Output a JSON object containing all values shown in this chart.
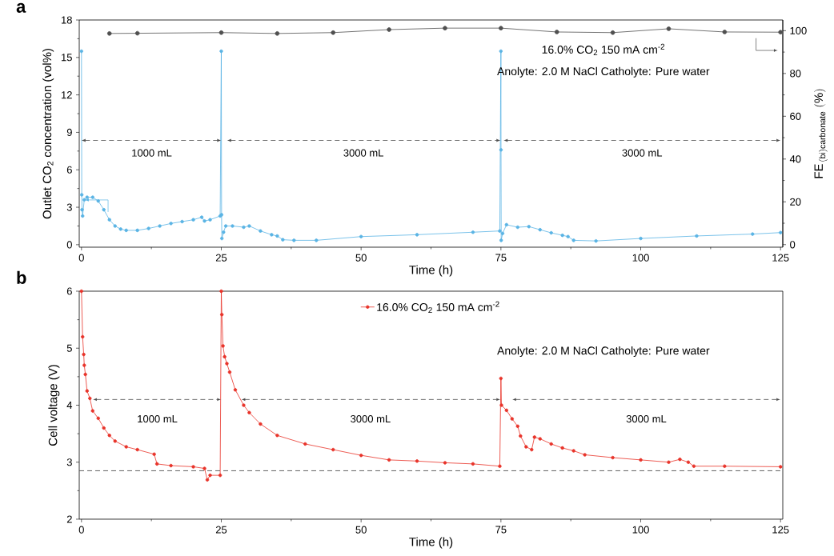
{
  "chart_data": [
    {
      "type": "line",
      "title": "a",
      "xlabel": "Time (h)",
      "ylabel": "Outlet CO$_{2}$ concentration (vol%)",
      "y2label": "\\mathrm{FE}_{\\,\\mathrm{(bi)carbonate}}\\ (\\%)",
      "annotations": [
        "16.0% CO$_{2}$   150 mA cm$^{-2}$",
        "Anolyte: 2.0 M NaCl  Catholyte:  Pure water",
        "1000 mL",
        "3000 mL",
        "3000 mL"
      ],
      "marker": "circle",
      "line_style": "solid",
      "xlim": [
        -0.4,
        125.4
      ],
      "xticks": [
        0,
        25,
        50,
        75,
        100,
        125
      ],
      "ylim": [
        -0.2,
        18
      ],
      "yticks": [
        0,
        3,
        6,
        9,
        12,
        15,
        18
      ],
      "y2lim": [
        -1.2,
        105
      ],
      "y2ticks": [
        0,
        20,
        40,
        60,
        80,
        100
      ],
      "series": [
        {
          "color": "#5ab4e4",
          "x": [
            0,
            0.05,
            0.1,
            0.2,
            0.5,
            1,
            2,
            3,
            4,
            5,
            6,
            7,
            8,
            10,
            12,
            14,
            16,
            18,
            20,
            21.5,
            22,
            23,
            24.8,
            25,
            25.05,
            25.1,
            25.4,
            25.8,
            27,
            29,
            30,
            32,
            34,
            35,
            36,
            38,
            42,
            50,
            60,
            70,
            74.8,
            75,
            75.02,
            75.05,
            75.3,
            76,
            78,
            80,
            82,
            84,
            86,
            87,
            88,
            92,
            100,
            110,
            120,
            125
          ],
          "values": [
            15.5,
            4.0,
            2.8,
            2.3,
            3.6,
            3.8,
            3.8,
            3.5,
            2.8,
            2.0,
            1.5,
            1.25,
            1.15,
            1.15,
            1.3,
            1.5,
            1.7,
            1.85,
            2.0,
            2.2,
            1.9,
            2.0,
            2.3,
            15.5,
            2.4,
            0.5,
            1.0,
            1.5,
            1.5,
            1.4,
            1.5,
            1.1,
            0.8,
            0.7,
            0.4,
            0.35,
            0.35,
            0.65,
            0.8,
            1.0,
            1.1,
            15.5,
            7.6,
            0.35,
            0.9,
            1.6,
            1.4,
            1.45,
            1.2,
            0.95,
            0.75,
            0.65,
            0.35,
            0.3,
            0.5,
            0.7,
            0.85,
            0.97
          ]
        },
        {
          "color": "#505050",
          "axis": "y2",
          "x": [
            5,
            10,
            25,
            35,
            45,
            55,
            65,
            75,
            85,
            95,
            105,
            115,
            125
          ],
          "values": [
            98.7,
            98.8,
            99.1,
            98.7,
            99.1,
            100.5,
            101.2,
            101.2,
            99.4,
            99.1,
            100.9,
            99.4,
            99.3
          ]
        }
      ]
    },
    {
      "type": "line",
      "title": "b",
      "xlabel": "Time (h)",
      "ylabel": "Cell voltage (V)",
      "annotations": [
        "Anolyte: 2.0 M NaCl  Catholyte:  Pure water",
        "1000 mL",
        "3000 mL",
        "3000 mL"
      ],
      "marker": "circle",
      "line_style": "solid",
      "legend": "top",
      "xlim": [
        -0.4,
        125.4
      ],
      "xticks": [
        0,
        25,
        50,
        75,
        100,
        125
      ],
      "ylim": [
        2,
        6
      ],
      "yticks": [
        2,
        3,
        4,
        5,
        6
      ],
      "ref_lines": [
        {
          "axis": "y",
          "value": 2.85,
          "color": "#505050",
          "line_style": "dashed"
        }
      ],
      "series": [
        {
          "name": "16.0% CO$_{2}$   150 mA cm$^{-2}$",
          "color": "#e8332a",
          "x": [
            0,
            0.2,
            0.4,
            0.5,
            0.7,
            1,
            1.5,
            2,
            3,
            4,
            5,
            6,
            8,
            10,
            13,
            13.5,
            16,
            20,
            22,
            22.5,
            23,
            24.8,
            25,
            25.1,
            25.3,
            25.6,
            26,
            26.5,
            27.5,
            29,
            30,
            32,
            35,
            40,
            45,
            50,
            55,
            60,
            65,
            70,
            74.8,
            75,
            75.1,
            76,
            77,
            78,
            78.5,
            79.5,
            80.5,
            81,
            82,
            84,
            86,
            88,
            90,
            95,
            100,
            105,
            107,
            108.5,
            109.5,
            115,
            125
          ],
          "values": [
            6,
            5.2,
            4.89,
            4.7,
            4.54,
            4.25,
            4.12,
            3.9,
            3.77,
            3.6,
            3.47,
            3.37,
            3.27,
            3.22,
            3.14,
            2.97,
            2.94,
            2.92,
            2.89,
            2.69,
            2.77,
            2.77,
            6,
            5.59,
            5.04,
            4.85,
            4.73,
            4.58,
            4.27,
            4.0,
            3.87,
            3.67,
            3.47,
            3.32,
            3.22,
            3.12,
            3.04,
            3.02,
            2.99,
            2.97,
            2.93,
            4.47,
            4.0,
            3.91,
            3.76,
            3.63,
            3.46,
            3.27,
            3.22,
            3.44,
            3.41,
            3.32,
            3.25,
            3.2,
            3.13,
            3.08,
            3.04,
            3.0,
            3.05,
            3.0,
            2.93,
            2.93,
            2.92
          ]
        }
      ]
    }
  ]
}
